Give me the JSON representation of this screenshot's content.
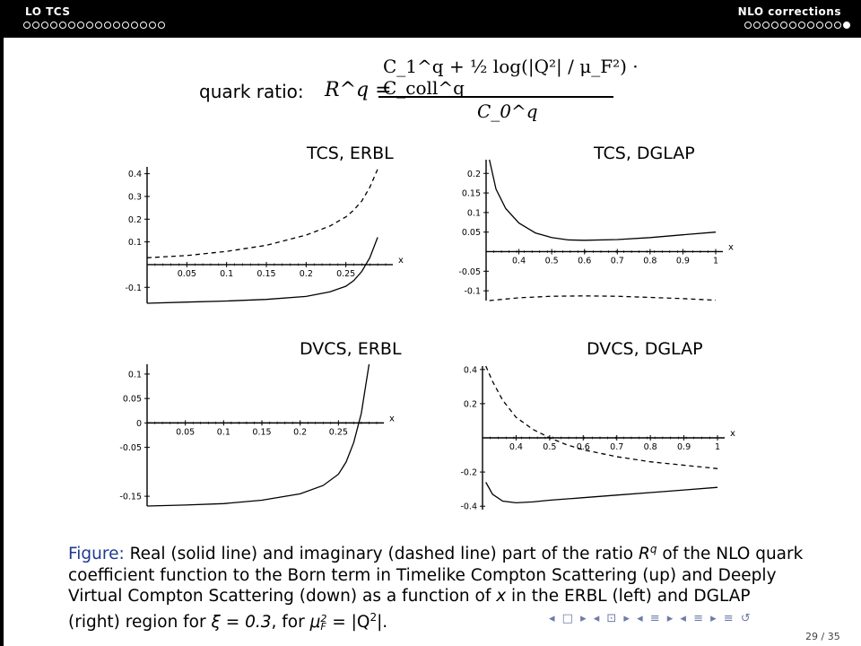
{
  "header": {
    "left_title": "LO TCS",
    "right_title": "NLO corrections",
    "left_dots_total": 16,
    "left_dots_filled": 0,
    "right_dots_total": 12,
    "right_dots_filled": 1
  },
  "formula": {
    "label": "quark ratio:",
    "lhs": "R^q =",
    "numerator": "C_1^q + ½ log(|Q²| / μ_F²) · C_coll^q",
    "denominator": "C_0^q"
  },
  "chart_data": [
    {
      "type": "line",
      "title": "TCS, ERBL",
      "xlabel": "x",
      "xlim": [
        0,
        0.3
      ],
      "ylim": [
        -0.17,
        0.43
      ],
      "xticks": [
        "0.05",
        "0.1",
        "0.15",
        "0.2",
        "0.25"
      ],
      "yticks": [
        "0.4",
        "0.3",
        "0.2",
        "0.1",
        "-0.1"
      ],
      "series": [
        {
          "style": "solid",
          "x": [
            0.0,
            0.05,
            0.1,
            0.15,
            0.2,
            0.23,
            0.25,
            0.26,
            0.27,
            0.28,
            0.29
          ],
          "y": [
            -0.17,
            -0.165,
            -0.16,
            -0.153,
            -0.14,
            -0.12,
            -0.095,
            -0.07,
            -0.03,
            0.03,
            0.12
          ]
        },
        {
          "style": "dashed",
          "x": [
            0.0,
            0.05,
            0.1,
            0.15,
            0.2,
            0.23,
            0.25,
            0.26,
            0.27,
            0.28,
            0.29
          ],
          "y": [
            0.03,
            0.04,
            0.058,
            0.085,
            0.13,
            0.17,
            0.21,
            0.24,
            0.28,
            0.34,
            0.42
          ]
        }
      ]
    },
    {
      "type": "line",
      "title": "TCS, DGLAP",
      "xlabel": "x",
      "xlim": [
        0.3,
        1.0
      ],
      "ylim": [
        -0.125,
        0.235
      ],
      "xticks": [
        "0.4",
        "0.5",
        "0.6",
        "0.7",
        "0.8",
        "0.9",
        "1"
      ],
      "yticks": [
        "0.2",
        "0.15",
        "0.1",
        "0.05",
        "-0.05",
        "-0.1"
      ],
      "series": [
        {
          "style": "solid",
          "x": [
            0.31,
            0.33,
            0.36,
            0.4,
            0.45,
            0.5,
            0.55,
            0.6,
            0.7,
            0.8,
            0.9,
            1.0
          ],
          "y": [
            0.235,
            0.16,
            0.11,
            0.073,
            0.048,
            0.036,
            0.03,
            0.029,
            0.031,
            0.036,
            0.043,
            0.05
          ]
        },
        {
          "style": "dashed",
          "x": [
            0.31,
            0.4,
            0.5,
            0.6,
            0.7,
            0.8,
            0.9,
            1.0
          ],
          "y": [
            -0.125,
            -0.118,
            -0.114,
            -0.113,
            -0.114,
            -0.117,
            -0.12,
            -0.124
          ]
        }
      ]
    },
    {
      "type": "line",
      "title": "DVCS, ERBL",
      "xlabel": "x",
      "xlim": [
        0,
        0.3
      ],
      "ylim": [
        -0.17,
        0.12
      ],
      "xticks": [
        "0.05",
        "0.1",
        "0.15",
        "0.2",
        "0.25"
      ],
      "yticks": [
        "0.1",
        "0.05",
        "0",
        "-0.05",
        "-0.15"
      ],
      "series": [
        {
          "style": "solid",
          "x": [
            0.0,
            0.05,
            0.1,
            0.15,
            0.2,
            0.23,
            0.25,
            0.26,
            0.27,
            0.28,
            0.285,
            0.29
          ],
          "y": [
            -0.17,
            -0.168,
            -0.165,
            -0.158,
            -0.145,
            -0.128,
            -0.105,
            -0.08,
            -0.04,
            0.02,
            0.07,
            0.12
          ]
        },
        {
          "style": "dashed",
          "x": [
            0.0,
            0.29
          ],
          "y": [
            0.0,
            0.0
          ]
        }
      ]
    },
    {
      "type": "line",
      "title": "DVCS, DGLAP",
      "xlabel": "x",
      "xlim": [
        0.3,
        1.0
      ],
      "ylim": [
        -0.42,
        0.42
      ],
      "xticks": [
        "0.4",
        "0.5",
        "0.6",
        "0.7",
        "0.8",
        "0.9",
        "1"
      ],
      "yticks": [
        "0.4",
        "0.2",
        "-0.2",
        "-0.4"
      ],
      "series": [
        {
          "style": "solid",
          "x": [
            0.31,
            0.33,
            0.36,
            0.4,
            0.45,
            0.5,
            0.6,
            0.7,
            0.8,
            0.9,
            1.0
          ],
          "y": [
            -0.26,
            -0.33,
            -0.37,
            -0.38,
            -0.375,
            -0.365,
            -0.35,
            -0.335,
            -0.32,
            -0.305,
            -0.29
          ]
        },
        {
          "style": "dashed",
          "x": [
            0.31,
            0.33,
            0.36,
            0.4,
            0.45,
            0.5,
            0.55,
            0.6,
            0.7,
            0.8,
            0.9,
            1.0
          ],
          "y": [
            0.42,
            0.33,
            0.22,
            0.12,
            0.05,
            0.0,
            -0.04,
            -0.07,
            -0.11,
            -0.14,
            -0.16,
            -0.18
          ]
        }
      ]
    }
  ],
  "caption": {
    "label": "Figure:",
    "text_1": " Real (solid line) and imaginary (dashed line) part of the ratio ",
    "rq": "R",
    "rq_sup": "q",
    "text_2": " of the NLO quark coefficient function to the Born term in Timelike Compton Scattering (up) and Deeply Virtual Compton Scattering (down) as a function of ",
    "x": "x",
    "text_3": " in the ERBL (left) and DGLAP (right) region for ",
    "xi": "ξ = 0.3",
    "text_4": ", for ",
    "mu": "μ",
    "mu_sup": "2",
    "mu_sub": "F",
    "text_5": " = |Q",
    "q_sup": "2",
    "text_6": "|."
  },
  "footer": {
    "nav_symbols": "◂ □ ▸ ◂ ⊡ ▸ ◂ ≡ ▸ ◂ ≡ ▸ ≡ ↺",
    "page": "29 / 35"
  }
}
